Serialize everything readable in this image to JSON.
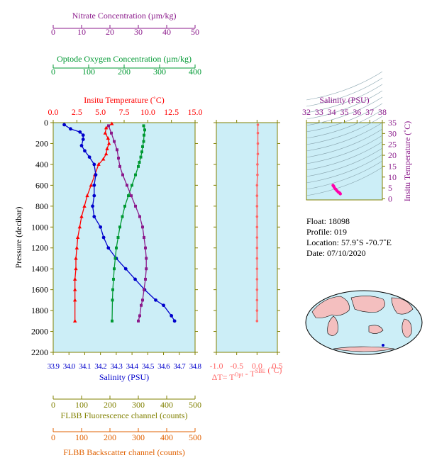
{
  "colors": {
    "nitrate": "#8B1A8B",
    "oxygen": "#009933",
    "temperature": "#FF0000",
    "salinity": "#0000CC",
    "delta_t": "#FF6666",
    "fluorescence": "#808000",
    "backscatter": "#E06000",
    "panel_bg": "#CCEEF7",
    "axis": "#808000"
  },
  "info": {
    "float_line": "Float:  18098",
    "profile_line": "Profile:  019",
    "location_line": "Location:  57.9˚S  -70.7˚E",
    "date_line": "Date:  07/10/2020"
  },
  "chart_data": [
    {
      "type": "line",
      "panel": "profile",
      "ylabel": "Pressure (decibar)",
      "ylim": [
        2200,
        0
      ],
      "yticks": [
        "0",
        "200",
        "400",
        "600",
        "800",
        "1000",
        "1200",
        "1400",
        "1600",
        "1800",
        "2000",
        "2200"
      ],
      "series": [
        {
          "name": "Insitu Temperature (˚C)",
          "axis_label": "Insitu Temperature (˚C)",
          "xlim": [
            0,
            15
          ],
          "xticks": [
            "0.0",
            "2.5",
            "5.0",
            "7.5",
            "10.0",
            "12.5",
            "15.0"
          ],
          "x": [
            6.2,
            5.6,
            5.5,
            5.8,
            5.9,
            5.7,
            5.6,
            5.3,
            4.8,
            4.4,
            4.0,
            3.6,
            3.3,
            3.0,
            2.8,
            2.6,
            2.5,
            2.4,
            2.4,
            2.3,
            2.3,
            2.3,
            2.3
          ],
          "y": [
            10,
            50,
            100,
            150,
            200,
            250,
            300,
            350,
            400,
            500,
            600,
            700,
            800,
            900,
            1000,
            1100,
            1200,
            1300,
            1400,
            1500,
            1600,
            1700,
            1900
          ]
        },
        {
          "name": "Salinity (PSU)",
          "axis_label": "Salinity (PSU)",
          "xlim": [
            33.9,
            34.8
          ],
          "xticks": [
            "33.9",
            "34.0",
            "34.1",
            "34.2",
            "34.3",
            "34.4",
            "34.5",
            "34.6",
            "34.7",
            "34.8"
          ],
          "x": [
            33.97,
            34.01,
            34.07,
            34.09,
            34.09,
            34.08,
            34.1,
            34.13,
            34.16,
            34.17,
            34.16,
            34.16,
            34.15,
            34.16,
            34.2,
            34.22,
            34.25,
            34.3,
            34.36,
            34.42,
            34.48,
            34.55,
            34.6,
            34.65,
            34.67
          ],
          "y": [
            20,
            60,
            90,
            120,
            160,
            220,
            270,
            330,
            400,
            500,
            600,
            700,
            800,
            900,
            1000,
            1100,
            1200,
            1300,
            1400,
            1500,
            1600,
            1700,
            1750,
            1850,
            1900
          ]
        },
        {
          "name": "Optode Oxygen Concentration (µm/kg)",
          "axis_label": "Optode Oxygen Concentration (µm/kg)",
          "xlim": [
            0,
            400
          ],
          "xticks": [
            "0",
            "100",
            "200",
            "300",
            "400"
          ],
          "x": [
            255,
            258,
            256,
            255,
            252,
            250,
            247,
            243,
            240,
            232,
            222,
            212,
            202,
            195,
            188,
            183,
            178,
            175,
            172,
            170,
            168,
            167,
            166
          ],
          "y": [
            30,
            70,
            120,
            180,
            230,
            280,
            330,
            380,
            420,
            500,
            600,
            700,
            800,
            900,
            1000,
            1100,
            1200,
            1300,
            1400,
            1500,
            1600,
            1700,
            1900
          ]
        },
        {
          "name": "Nitrate Concentration (µm/kg)",
          "axis_label": "Nitrate Concentration (µm/kg)",
          "xlim": [
            0,
            50
          ],
          "xticks": [
            "0",
            "10",
            "20",
            "30",
            "40",
            "50"
          ],
          "x": [
            19.5,
            20.5,
            21.5,
            22.5,
            23.0,
            23.5,
            24.5,
            26.0,
            27.5,
            29.0,
            30.5,
            31.5,
            32.0,
            32.5,
            32.8,
            32.8,
            32.5,
            32.0,
            31.5,
            31.0,
            30.5,
            30.0
          ],
          "y": [
            30,
            100,
            180,
            260,
            340,
            420,
            500,
            600,
            700,
            800,
            900,
            1000,
            1100,
            1200,
            1300,
            1400,
            1500,
            1600,
            1700,
            1750,
            1850,
            1900
          ]
        }
      ],
      "bottom_axes": [
        {
          "label": "FLBB Fluorescence channel (counts)",
          "xlim": [
            0,
            500
          ],
          "xticks": [
            "0",
            "100",
            "200",
            "300",
            "400",
            "500"
          ]
        },
        {
          "label": "FLBB Backscatter channel (counts)",
          "xlim": [
            0,
            500
          ],
          "xticks": [
            "0",
            "100",
            "200",
            "300",
            "400",
            "500"
          ]
        }
      ]
    },
    {
      "type": "line",
      "panel": "delta_t",
      "xlabel_prefix": "ΔT= T",
      "xlabel_sup1": "Opt",
      "xlabel_mid": " - T",
      "xlabel_sup2": "SBE",
      "xlabel_suffix": " (˚C)",
      "xlim": [
        -1.0,
        0.5
      ],
      "xticks": [
        "-1.0",
        "-0.5",
        "0.0",
        "0.5"
      ],
      "ylim": [
        2200,
        0
      ],
      "x": [
        0.02,
        0.02,
        0.02,
        0.02,
        0.01,
        0.01,
        0.0,
        0.0,
        0.0,
        0.0,
        0.0,
        0.0,
        0.0,
        0.0,
        0.0,
        0.0,
        0.0,
        0.0,
        0.0,
        0.0
      ],
      "y": [
        20,
        100,
        200,
        300,
        400,
        500,
        600,
        700,
        800,
        900,
        1000,
        1100,
        1200,
        1300,
        1400,
        1500,
        1600,
        1700,
        1800,
        1900
      ]
    },
    {
      "type": "scatter",
      "panel": "ts_diagram",
      "xlabel": "Salinity (PSU)",
      "ylabel": "Insitu Temperature (˚C)",
      "xlim": [
        32,
        38
      ],
      "ylim": [
        -0.5,
        35
      ],
      "xticks": [
        "32",
        "33",
        "34",
        "35",
        "36",
        "37",
        "38"
      ],
      "yticks": [
        "0",
        "5",
        "10",
        "15",
        "20",
        "25",
        "30",
        "35"
      ],
      "x": [
        34.1,
        34.15,
        34.2,
        34.3,
        34.4,
        34.5,
        34.6,
        34.65,
        34.68
      ],
      "y": [
        6.2,
        5.8,
        5.2,
        4.5,
        3.8,
        3.2,
        2.8,
        2.5,
        2.3
      ]
    }
  ]
}
